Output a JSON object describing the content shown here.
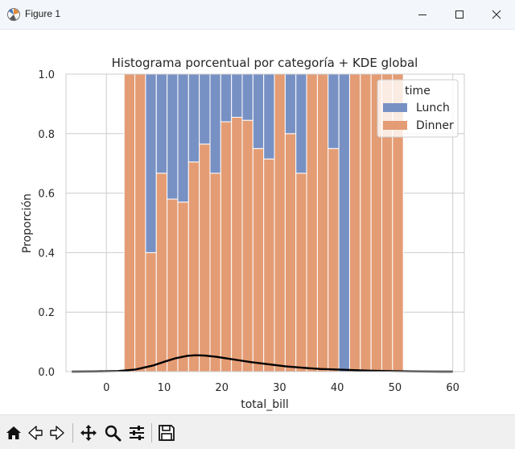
{
  "window": {
    "title": "Figure 1",
    "minimize_icon": "minimize-icon",
    "maximize_icon": "maximize-icon",
    "close_icon": "close-icon"
  },
  "toolbar": {
    "buttons": [
      "home-icon",
      "back-arrow-icon",
      "forward-arrow-icon",
      "pan-icon",
      "zoom-icon",
      "configure-subplots-icon",
      "save-icon"
    ]
  },
  "colors": {
    "lunch": "#7891c4",
    "dinner": "#e49c74",
    "kde": "#000000",
    "grid": "#cccccc",
    "axes_edge": "#cccccc"
  },
  "chart_data": {
    "type": "bar",
    "subtype": "stacked-histogram-fill-with-kde",
    "title": "Histograma porcentual por categoría + KDE global",
    "xlabel": "total_bill",
    "ylabel": "Proporción",
    "xlim": [
      -7,
      62
    ],
    "ylim": [
      0,
      1
    ],
    "xticks": [
      0,
      10,
      20,
      30,
      40,
      50,
      60
    ],
    "yticks": [
      0.0,
      0.2,
      0.4,
      0.6,
      0.8,
      1.0
    ],
    "xticklabels": [
      "0",
      "10",
      "20",
      "30",
      "40",
      "50",
      "60"
    ],
    "yticklabels": [
      "0.0",
      "0.2",
      "0.4",
      "0.6",
      "0.8",
      "1.0"
    ],
    "grid": true,
    "legend": {
      "title": "time",
      "position": "upper right",
      "entries": [
        "Lunch",
        "Dinner"
      ]
    },
    "bins": {
      "edges": [
        3.07,
        4.93,
        6.79,
        8.65,
        10.51,
        12.37,
        14.23,
        16.09,
        17.95,
        19.81,
        21.67,
        23.53,
        25.39,
        27.25,
        29.11,
        30.97,
        32.83,
        34.69,
        36.55,
        38.41,
        40.27,
        42.13,
        43.99,
        45.85,
        47.71,
        49.57,
        51.43
      ],
      "series": [
        {
          "name": "Lunch",
          "values": [
            0.0,
            0.0,
            0.6,
            0.333,
            0.42,
            0.43,
            0.295,
            0.235,
            0.333,
            0.16,
            0.145,
            0.155,
            0.25,
            0.285,
            0.0,
            0.2,
            0.333,
            0.0,
            0.0,
            0.25,
            1.0,
            0.0,
            0.0,
            0.0,
            0.0,
            0.0
          ]
        },
        {
          "name": "Dinner",
          "values": [
            1.0,
            1.0,
            0.4,
            0.667,
            0.58,
            0.57,
            0.705,
            0.765,
            0.667,
            0.84,
            0.855,
            0.845,
            0.75,
            0.715,
            1.0,
            0.8,
            0.667,
            1.0,
            1.0,
            0.75,
            0.0,
            1.0,
            1.0,
            1.0,
            1.0,
            1.0
          ]
        }
      ]
    },
    "kde": {
      "name": "KDE global",
      "x": [
        -6,
        -2,
        2,
        5,
        8,
        10,
        12,
        14,
        15.5,
        17,
        19,
        21,
        23,
        25,
        28,
        31,
        34,
        37,
        40,
        43,
        46,
        50,
        54,
        58,
        60
      ],
      "y": [
        0.0,
        0.0005,
        0.002,
        0.007,
        0.02,
        0.033,
        0.045,
        0.053,
        0.055,
        0.054,
        0.05,
        0.044,
        0.038,
        0.032,
        0.025,
        0.018,
        0.013,
        0.009,
        0.007,
        0.005,
        0.003,
        0.0015,
        0.0006,
        0.0001,
        0.0
      ]
    }
  }
}
